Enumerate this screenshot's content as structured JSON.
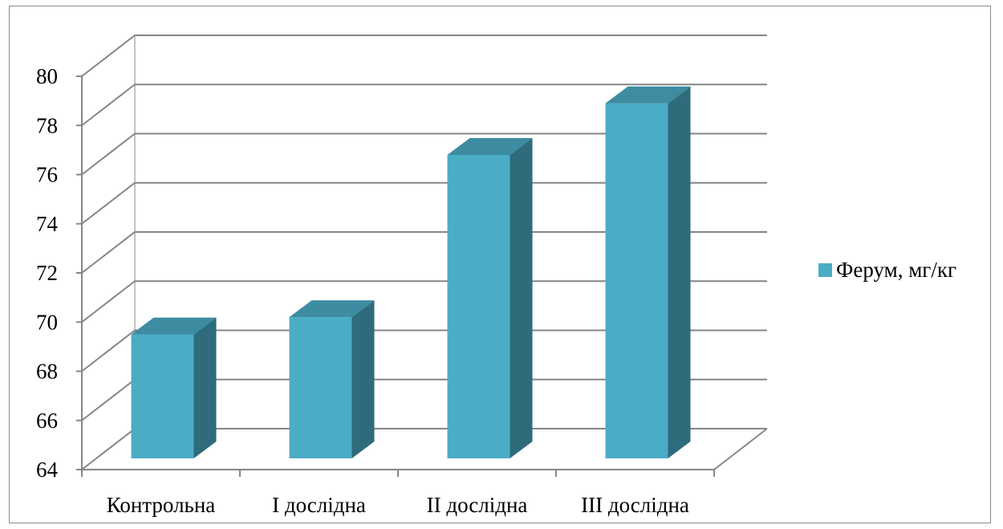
{
  "chart_data": {
    "type": "bar",
    "categories": [
      "Контрольна",
      "I дослідна",
      "II дослідна",
      "III дослідна"
    ],
    "series": [
      {
        "name": "Ферум, мг/кг",
        "values": [
          69.5,
          70.2,
          76.8,
          78.9
        ]
      }
    ],
    "ylim": [
      64,
      80
    ],
    "yticks": [
      64,
      66,
      68,
      70,
      72,
      74,
      76,
      78,
      80
    ],
    "title": "",
    "xlabel": "",
    "ylabel": "",
    "grid": true,
    "legend_position": "right",
    "style": "3d-column",
    "colors": {
      "front": "#4bacc6",
      "side": "#2e6b7b",
      "top": "#3d8ca2",
      "grid": "#868686"
    }
  }
}
